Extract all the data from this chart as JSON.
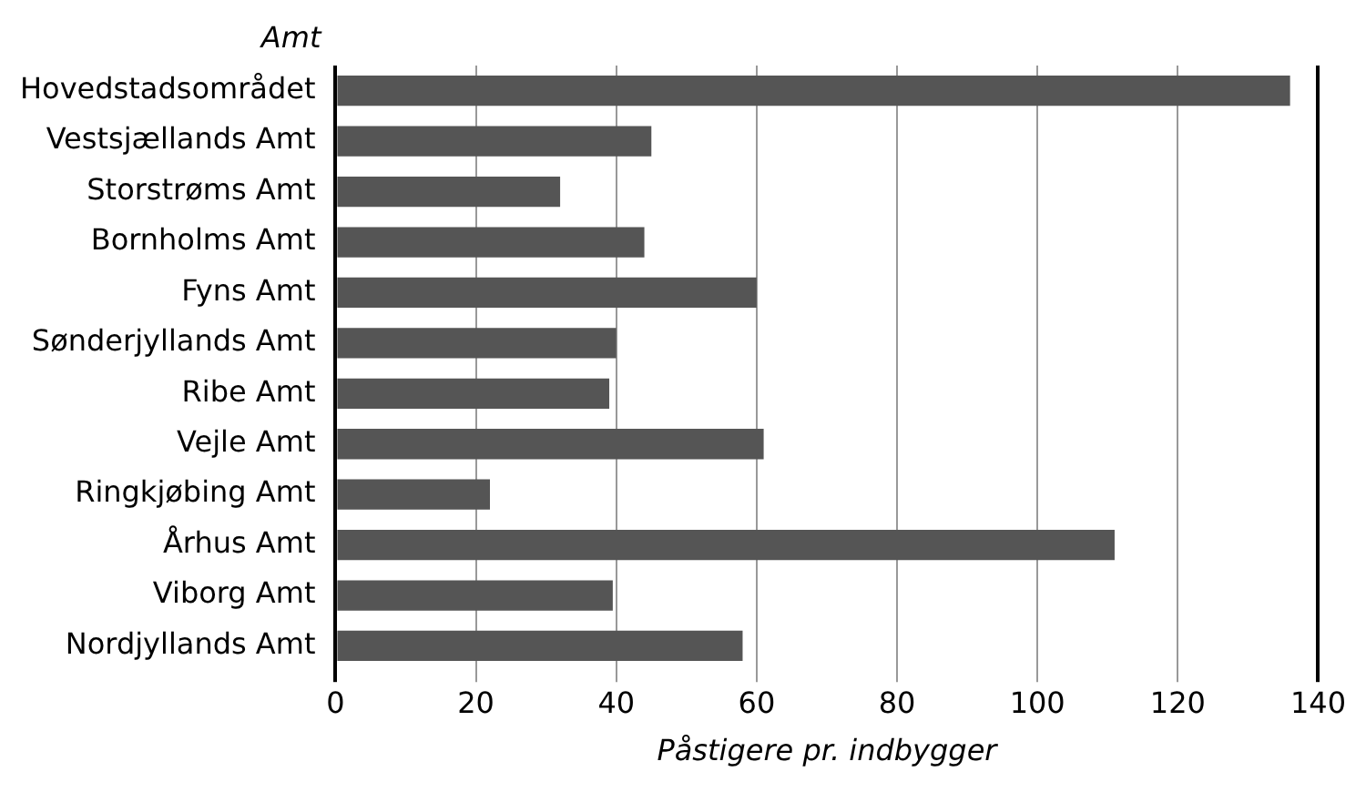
{
  "chart_data": {
    "type": "bar",
    "orientation": "horizontal",
    "ylabel": "Amt",
    "xlabel": "Påstigere pr. indbygger",
    "categories": [
      "Hovedstadsområdet",
      "Vestsjællands Amt",
      "Storstrøms Amt",
      "Bornholms Amt",
      "Fyns Amt",
      "Sønderjyllands Amt",
      "Ribe Amt",
      "Vejle Amt",
      "Ringkjøbing Amt",
      "Århus Amt",
      "Viborg Amt",
      "Nordjyllands Amt"
    ],
    "values": [
      136,
      45,
      32,
      44,
      60,
      40,
      39,
      61,
      22,
      111,
      39.5,
      58
    ],
    "color": "#555555",
    "xlim": [
      0,
      140
    ],
    "xticks": [
      0,
      20,
      40,
      60,
      80,
      100,
      120,
      140
    ],
    "grid": "x",
    "legend": false
  }
}
